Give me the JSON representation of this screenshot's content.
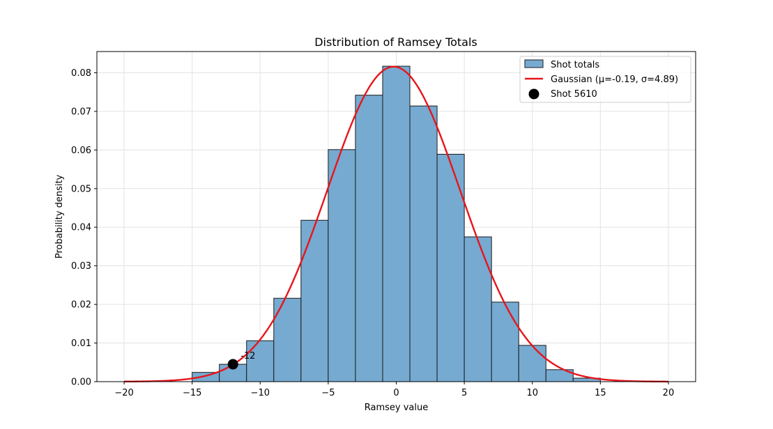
{
  "chart_data": {
    "type": "bar",
    "title": "Distribution of Ramsey Totals",
    "xlabel": "Ramsey value",
    "ylabel": "Probability density",
    "xlim": [
      -22,
      22
    ],
    "ylim": [
      0,
      0.0855
    ],
    "xticks": [
      -20,
      -15,
      -10,
      -5,
      0,
      5,
      10,
      15,
      20
    ],
    "xtick_labels": [
      "−20",
      "−15",
      "−10",
      "−5",
      "0",
      "5",
      "10",
      "15",
      "20"
    ],
    "yticks": [
      0,
      0.01,
      0.02,
      0.03,
      0.04,
      0.05,
      0.06,
      0.07,
      0.08
    ],
    "ytick_labels": [
      "0.00",
      "0.01",
      "0.02",
      "0.03",
      "0.04",
      "0.05",
      "0.06",
      "0.07",
      "0.08"
    ],
    "grid": true,
    "legend_position": "top-right",
    "colors": {
      "bar_fill": "#76aad1",
      "bar_edge": "#1a1a1a",
      "curve": "#e8141b",
      "marker": "#000000",
      "grid": "#e3e3e3"
    },
    "histogram": {
      "name": "Shot totals",
      "bin_width": 2,
      "bin_edges": [
        -15,
        -13,
        -11,
        -9,
        -7,
        -5,
        -3,
        -1,
        1,
        3,
        5,
        7,
        9,
        11,
        13,
        15
      ],
      "densities": [
        0.0024,
        0.0045,
        0.0106,
        0.0216,
        0.0418,
        0.0601,
        0.0742,
        0.0817,
        0.0714,
        0.0589,
        0.0375,
        0.0206,
        0.0094,
        0.0031,
        0.0009
      ]
    },
    "gaussian": {
      "name": "Gaussian (μ=-0.19, σ=4.89)",
      "mu": -0.19,
      "sigma": 4.89,
      "x_range": [
        -20,
        20
      ]
    },
    "marker": {
      "name": "Shot 5610",
      "x": -12,
      "y": 0.0045,
      "label": "-12"
    }
  }
}
